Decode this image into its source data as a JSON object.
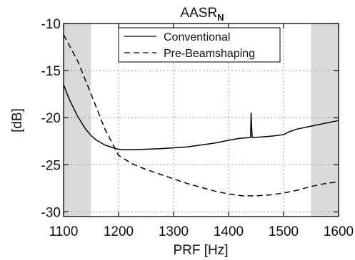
{
  "chart_data": {
    "type": "line",
    "title": "AASR",
    "title_subscript": "N",
    "xlabel": "PRF [Hz]",
    "ylabel": "[dB]",
    "xlim": [
      1100,
      1600
    ],
    "ylim": [
      -30.5,
      -10
    ],
    "xticks": [
      1100,
      1200,
      1300,
      1400,
      1500,
      1600
    ],
    "yticks": [
      -30,
      -25,
      -20,
      -15,
      -10
    ],
    "grid": true,
    "grid_style": "dotted",
    "legend_position": "top",
    "shaded_regions": [
      {
        "x0": 1100,
        "x1": 1150,
        "color": "#d9d9d9"
      },
      {
        "x0": 1550,
        "x1": 1600,
        "color": "#d9d9d9"
      }
    ],
    "series": [
      {
        "name": "Conventional",
        "style": "solid",
        "color": "#000000",
        "x": [
          1100,
          1110,
          1125,
          1140,
          1150,
          1160,
          1175,
          1190,
          1200,
          1210,
          1225,
          1250,
          1275,
          1300,
          1325,
          1350,
          1375,
          1400,
          1420,
          1440,
          1441,
          1442,
          1443,
          1444,
          1460,
          1480,
          1500,
          1510,
          1525,
          1550,
          1575,
          1600
        ],
        "values": [
          -16.5,
          -18.0,
          -19.8,
          -21.2,
          -21.9,
          -22.4,
          -22.9,
          -23.2,
          -23.35,
          -23.4,
          -23.4,
          -23.35,
          -23.3,
          -23.2,
          -23.1,
          -22.9,
          -22.7,
          -22.4,
          -22.2,
          -22.1,
          -19.5,
          -21.0,
          -22.1,
          -22.1,
          -22.05,
          -21.95,
          -21.8,
          -21.5,
          -21.2,
          -20.9,
          -20.6,
          -20.3
        ]
      },
      {
        "name": "Pre-Beamshaping",
        "style": "dashed",
        "color": "#000000",
        "x": [
          1100,
          1125,
          1150,
          1175,
          1200,
          1225,
          1250,
          1275,
          1300,
          1325,
          1350,
          1375,
          1400,
          1425,
          1450,
          1475,
          1500,
          1525,
          1550,
          1575,
          1600
        ],
        "values": [
          -11.2,
          -13.9,
          -17.5,
          -21.2,
          -24.0,
          -24.9,
          -25.5,
          -26.0,
          -26.5,
          -27.0,
          -27.4,
          -27.8,
          -28.1,
          -28.3,
          -28.3,
          -28.2,
          -28.0,
          -27.7,
          -27.3,
          -27.0,
          -26.8
        ]
      }
    ]
  }
}
